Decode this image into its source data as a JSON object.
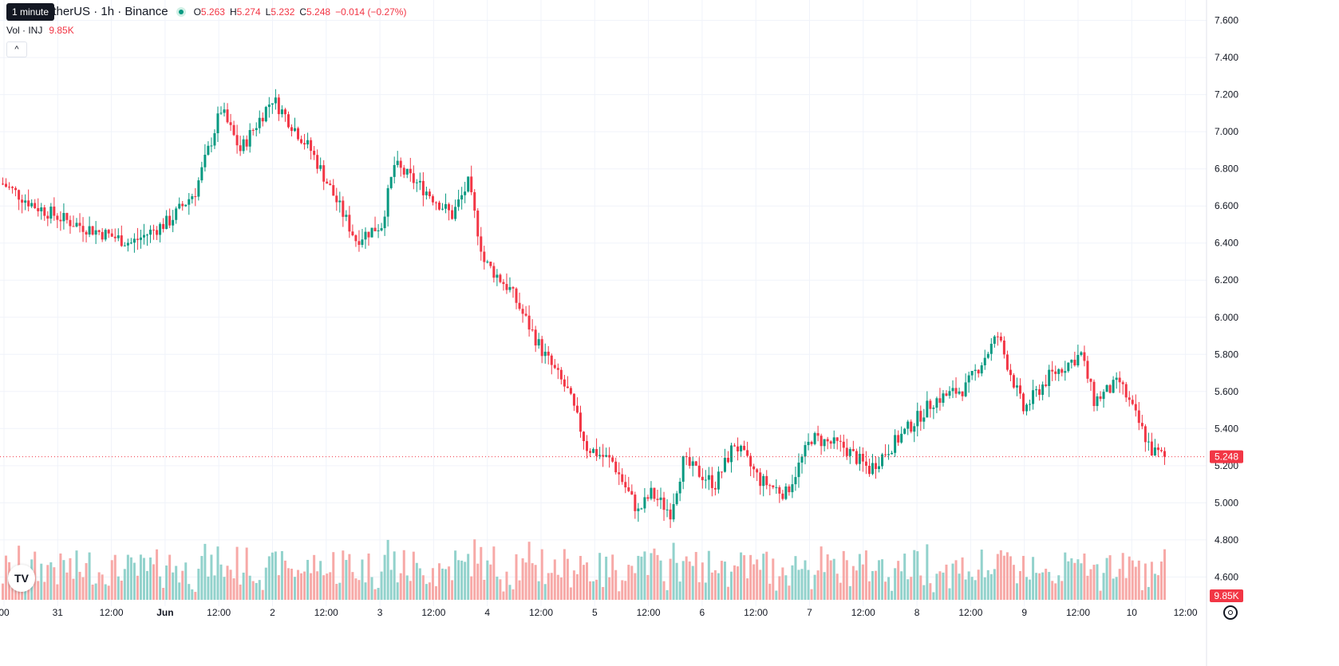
{
  "tooltip": "1 minute",
  "header": {
    "symbol": "etherUS · 1h · Binance",
    "ohlc": [
      {
        "k": "O",
        "v": "5.263"
      },
      {
        "k": "H",
        "v": "5.274"
      },
      {
        "k": "L",
        "v": "5.232"
      },
      {
        "k": "C",
        "v": "5.248"
      },
      {
        "k": "",
        "v": "−0.014 (−0.27%)"
      }
    ]
  },
  "volume": {
    "label": "Vol · INJ",
    "value": "9.85K"
  },
  "collapse_icon": "chevron-up-icon",
  "logo": "TV",
  "colors": {
    "up": "#089981",
    "down": "#f23645",
    "up_vol": "#92d2cc",
    "down_vol": "#f7a9a7",
    "grid": "#f0f3fa"
  },
  "chart_data": {
    "type": "candlestick",
    "price_axis": {
      "ticks": [
        "7.600",
        "7.400",
        "7.200",
        "7.000",
        "6.800",
        "6.600",
        "6.400",
        "6.200",
        "6.000",
        "5.800",
        "5.600",
        "5.400",
        "5.200",
        "5.000",
        "4.800",
        "4.600"
      ],
      "ylim": [
        4.55,
        7.65
      ]
    },
    "time_axis": {
      "ticks": [
        "00",
        "31",
        "12:00",
        "Jun",
        "12:00",
        "2",
        "12:00",
        "3",
        "12:00",
        "4",
        "12:00",
        "5",
        "12:00",
        "6",
        "12:00",
        "7",
        "12:00",
        "8",
        "12:00",
        "9",
        "12:00",
        "10",
        "12:00"
      ]
    },
    "last_price": "5.248",
    "last_volume": "9.85K",
    "interval": "1h",
    "trend_anchors": [
      [
        0,
        6.72
      ],
      [
        10,
        6.6
      ],
      [
        20,
        6.52
      ],
      [
        40,
        6.4
      ],
      [
        52,
        6.52
      ],
      [
        60,
        6.68
      ],
      [
        68,
        7.12
      ],
      [
        74,
        6.9
      ],
      [
        84,
        7.18
      ],
      [
        96,
        6.9
      ],
      [
        110,
        6.42
      ],
      [
        118,
        6.5
      ],
      [
        122,
        6.82
      ],
      [
        132,
        6.68
      ],
      [
        140,
        6.55
      ],
      [
        145,
        6.72
      ],
      [
        150,
        6.3
      ],
      [
        158,
        6.15
      ],
      [
        168,
        5.82
      ],
      [
        176,
        5.6
      ],
      [
        182,
        5.3
      ],
      [
        190,
        5.22
      ],
      [
        198,
        4.95
      ],
      [
        202,
        5.05
      ],
      [
        208,
        4.95
      ],
      [
        212,
        5.22
      ],
      [
        222,
        5.1
      ],
      [
        228,
        5.32
      ],
      [
        236,
        5.12
      ],
      [
        244,
        5.05
      ],
      [
        252,
        5.35
      ],
      [
        262,
        5.3
      ],
      [
        270,
        5.18
      ],
      [
        282,
        5.4
      ],
      [
        290,
        5.55
      ],
      [
        300,
        5.62
      ],
      [
        310,
        5.9
      ],
      [
        318,
        5.5
      ],
      [
        326,
        5.68
      ],
      [
        336,
        5.8
      ],
      [
        340,
        5.55
      ],
      [
        348,
        5.65
      ],
      [
        358,
        5.28
      ],
      [
        362,
        5.248
      ]
    ],
    "volume_scale_max": 1.0
  }
}
